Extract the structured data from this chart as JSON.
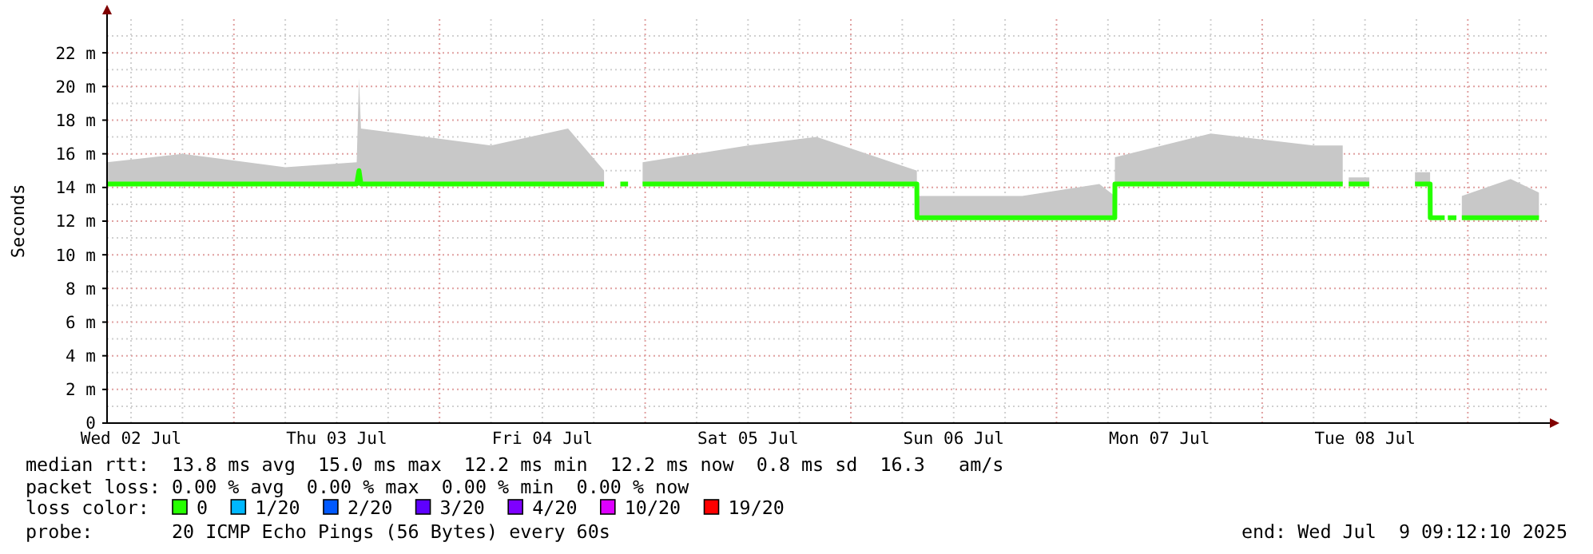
{
  "chart_data": {
    "type": "line",
    "ylabel": "Seconds",
    "x": [
      "2025-07-02T09:12",
      "2025-07-02T18:00",
      "2025-07-03T06:00",
      "2025-07-03T14:20",
      "2025-07-03T14:36",
      "2025-07-03T14:50",
      "2025-07-04T06:00",
      "2025-07-04T15:00",
      "2025-07-04T19:12",
      "2025-07-04T19:20",
      "2025-07-04T21:06",
      "2025-07-04T22:00",
      "2025-07-04T22:30",
      "2025-07-04T23:42",
      "2025-07-05T12:00",
      "2025-07-05T20:00",
      "2025-07-06T07:42",
      "2025-07-06T07:43",
      "2025-07-06T20:00",
      "2025-07-07T05:00",
      "2025-07-07T06:48",
      "2025-07-07T06:49",
      "2025-07-07T18:00",
      "2025-07-08T06:00",
      "2025-07-08T09:24",
      "2025-07-08T09:45",
      "2025-07-08T10:06",
      "2025-07-08T12:30",
      "2025-07-08T15:00",
      "2025-07-08T17:50",
      "2025-07-08T19:36",
      "2025-07-08T19:37",
      "2025-07-08T21:18",
      "2025-07-08T21:30",
      "2025-07-08T21:40",
      "2025-07-08T22:40",
      "2025-07-08T22:55",
      "2025-07-08T23:18",
      "2025-07-09T05:00",
      "2025-07-09T08:18"
    ],
    "series": [
      {
        "name": "0",
        "color": "#26ff00",
        "values": [
          14.2,
          14.2,
          14.2,
          14.2,
          15,
          14.2,
          14.2,
          14.2,
          14.2,
          null,
          14.2,
          14.2,
          null,
          14.2,
          14.2,
          14.2,
          14.2,
          12.2,
          12.2,
          12.2,
          12.2,
          14.2,
          14.2,
          14.2,
          14.2,
          null,
          14.2,
          14.2,
          null,
          14.2,
          14.2,
          12.2,
          12.2,
          null,
          12.2,
          12.2,
          null,
          12.2,
          12.2,
          12.2
        ],
        "lower": [
          14.2,
          14.2,
          14.2,
          14.2,
          15,
          14.2,
          14.2,
          14.2,
          14.2,
          null,
          null,
          null,
          null,
          14.2,
          14.2,
          14.2,
          14.2,
          12.2,
          12.2,
          12.2,
          12.2,
          14.2,
          14.2,
          14.2,
          14.2,
          null,
          14.2,
          14.2,
          null,
          14.2,
          14.2,
          null,
          null,
          null,
          null,
          null,
          null,
          12.2,
          12.2,
          12.2
        ],
        "upper": [
          15.5,
          16,
          15.2,
          15.5,
          20.5,
          17.5,
          16.5,
          17.5,
          15,
          null,
          null,
          null,
          null,
          15.5,
          16.5,
          17,
          15,
          13.5,
          13.5,
          14.2,
          13.5,
          15.8,
          17.2,
          16.5,
          16.5,
          null,
          14.6,
          14.6,
          null,
          14.9,
          14.9,
          null,
          null,
          null,
          null,
          null,
          null,
          13.5,
          14.5,
          13.7
        ]
      },
      {
        "name": "1/20",
        "color": "#00b8ff",
        "values": [
          null,
          null,
          null,
          null,
          null,
          null,
          null,
          null,
          null,
          null,
          null,
          null,
          null,
          null,
          null,
          null,
          null,
          null,
          null,
          null,
          null,
          null,
          null,
          null,
          null,
          null,
          null,
          null,
          null,
          null,
          null,
          null,
          null,
          null,
          null,
          null,
          null,
          null,
          null,
          null
        ]
      },
      {
        "name": "2/20",
        "color": "#0059ff",
        "values": [
          null,
          null,
          null,
          null,
          null,
          null,
          null,
          null,
          null,
          null,
          null,
          null,
          null,
          null,
          null,
          null,
          null,
          null,
          null,
          null,
          null,
          null,
          null,
          null,
          null,
          null,
          null,
          null,
          null,
          null,
          null,
          null,
          null,
          null,
          null,
          null,
          null,
          null,
          null,
          null
        ]
      },
      {
        "name": "3/20",
        "color": "#5e00ff",
        "values": [
          null,
          null,
          null,
          null,
          null,
          null,
          null,
          null,
          null,
          null,
          null,
          null,
          null,
          null,
          null,
          null,
          null,
          null,
          null,
          null,
          null,
          null,
          null,
          null,
          null,
          null,
          null,
          null,
          null,
          null,
          null,
          null,
          null,
          null,
          null,
          null,
          null,
          null,
          null,
          null
        ]
      },
      {
        "name": "4/20",
        "color": "#7e00ff",
        "values": [
          null,
          null,
          null,
          null,
          null,
          null,
          null,
          null,
          null,
          null,
          null,
          null,
          null,
          null,
          null,
          null,
          null,
          null,
          null,
          null,
          null,
          null,
          null,
          null,
          null,
          null,
          null,
          null,
          null,
          null,
          null,
          null,
          null,
          null,
          null,
          null,
          null,
          null,
          null,
          null
        ]
      },
      {
        "name": "10/20",
        "color": "#dd00ff",
        "values": [
          null,
          null,
          null,
          null,
          null,
          null,
          null,
          null,
          null,
          null,
          null,
          null,
          null,
          null,
          null,
          null,
          null,
          null,
          null,
          null,
          null,
          null,
          null,
          null,
          null,
          null,
          null,
          null,
          null,
          null,
          null,
          null,
          null,
          null,
          null,
          null,
          null,
          null,
          null,
          null
        ]
      },
      {
        "name": "19/20",
        "color": "#ff0000",
        "values": [
          null,
          null,
          null,
          null,
          null,
          null,
          null,
          null,
          null,
          null,
          null,
          null,
          null,
          null,
          null,
          null,
          null,
          null,
          null,
          null,
          null,
          null,
          null,
          null,
          null,
          null,
          null,
          null,
          null,
          null,
          null,
          null,
          null,
          null,
          null,
          null,
          null,
          null,
          null,
          null
        ]
      }
    ],
    "xlim": [
      "2025-07-02T09:12",
      "2025-07-09T09:12"
    ],
    "xticks": [
      {
        "value": "2025-07-02T12:00",
        "label": "Wed 02 Jul"
      },
      {
        "value": "2025-07-03T12:00",
        "label": "Thu 03 Jul"
      },
      {
        "value": "2025-07-04T12:00",
        "label": "Fri 04 Jul"
      },
      {
        "value": "2025-07-05T12:00",
        "label": "Sat 05 Jul"
      },
      {
        "value": "2025-07-06T12:00",
        "label": "Sun 06 Jul"
      },
      {
        "value": "2025-07-07T12:00",
        "label": "Mon 07 Jul"
      },
      {
        "value": "2025-07-08T12:00",
        "label": "Tue 08 Jul"
      }
    ],
    "ylim": [
      0,
      24
    ],
    "yticks": [
      0,
      {
        "value": 2,
        "label": "2 m"
      },
      {
        "value": 4,
        "label": "4 m"
      },
      {
        "value": 6,
        "label": "6 m"
      },
      {
        "value": 8,
        "label": "8 m"
      },
      {
        "value": 10,
        "label": "10 m"
      },
      {
        "value": 12,
        "label": "12 m"
      },
      {
        "value": 14,
        "label": "14 m"
      },
      {
        "value": 16,
        "label": "16 m"
      },
      {
        "value": 18,
        "label": "18 m"
      },
      {
        "value": 20,
        "label": "20 m"
      },
      {
        "value": 22,
        "label": "22 m"
      }
    ],
    "grid": true,
    "legend": "bottom",
    "legend_title": "loss color:",
    "marker": "none",
    "annotations": [
      "median rtt:  13.8 ms avg  15.0 ms max  12.2 ms min  12.2 ms now  0.8 ms sd  16.3   am/s",
      "packet loss: 0.00 % avg  0.00 % max  0.00 % min  0.00 % now",
      "probe:       20 ICMP Echo Pings (56 Bytes) every 60s",
      "end: Wed Jul  9 09:12:10 2025"
    ]
  }
}
